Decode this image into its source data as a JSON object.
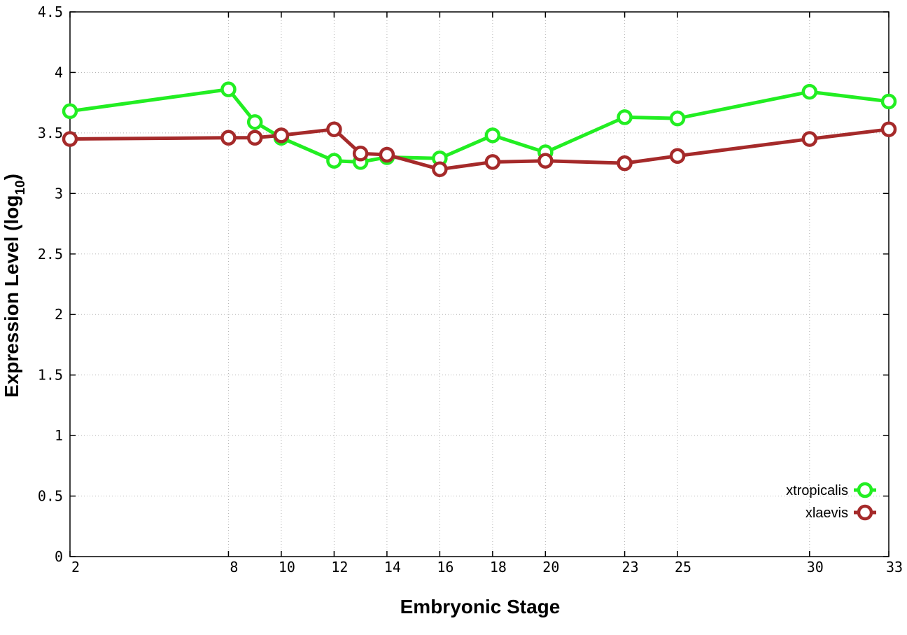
{
  "chart_data": {
    "type": "line",
    "xlabel": "Embryonic Stage",
    "ylabel": {
      "main": "Expression Level (log",
      "sub": "10",
      "close": ")"
    },
    "xlim": [
      2,
      33
    ],
    "ylim": [
      0,
      4.5
    ],
    "x_ticks": [
      2,
      8,
      10,
      12,
      14,
      16,
      18,
      20,
      23,
      25,
      30,
      33
    ],
    "y_ticks": [
      0,
      0.5,
      1,
      1.5,
      2,
      2.5,
      3,
      3.5,
      4,
      4.5
    ],
    "x_tick_labels": [
      "2",
      "8",
      "10",
      "12",
      "14",
      "16",
      "18",
      "20",
      "23",
      "25",
      "30",
      "33"
    ],
    "y_tick_labels": [
      "0",
      "0.5",
      "1",
      "1.5",
      "2",
      "2.5",
      "3",
      "3.5",
      "4",
      "4.5"
    ],
    "grid": true,
    "legend_position": "bottom-right",
    "series": [
      {
        "name": "xtropicalis",
        "color": "#22ee22",
        "x": [
          2,
          8,
          9,
          10,
          12,
          13,
          14,
          16,
          18,
          20,
          23,
          25,
          30,
          33
        ],
        "y": [
          3.68,
          3.86,
          3.59,
          3.46,
          3.27,
          3.26,
          3.3,
          3.29,
          3.48,
          3.34,
          3.63,
          3.62,
          3.84,
          3.76
        ]
      },
      {
        "name": "xlaevis",
        "color": "#a52a2a",
        "x": [
          2,
          8,
          9,
          10,
          12,
          13,
          14,
          16,
          18,
          20,
          23,
          25,
          30,
          33
        ],
        "y": [
          3.45,
          3.46,
          3.46,
          3.48,
          3.53,
          3.33,
          3.32,
          3.2,
          3.26,
          3.27,
          3.25,
          3.31,
          3.45,
          3.53
        ]
      }
    ]
  }
}
